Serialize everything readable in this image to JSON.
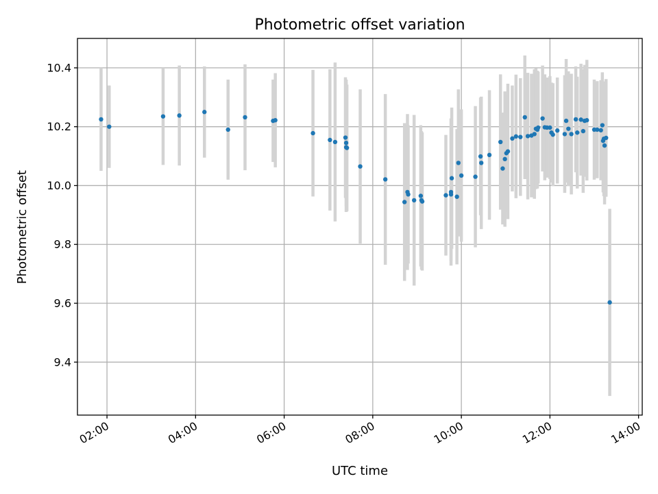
{
  "chart_data": {
    "type": "scatter",
    "title": "Photometric offset variation",
    "xlabel": "UTC time",
    "ylabel": "Photometric offset",
    "xlim": [
      "01:20",
      "14:05"
    ],
    "ylim": [
      9.22,
      10.5
    ],
    "x_ticks": [
      "02:00",
      "04:00",
      "06:00",
      "08:00",
      "10:00",
      "12:00",
      "14:00"
    ],
    "y_ticks": [
      9.4,
      9.6,
      9.8,
      10.0,
      10.2,
      10.4
    ],
    "y_tick_labels": [
      "9.4",
      "9.6",
      "9.8",
      "10.0",
      "10.2",
      "10.4"
    ],
    "grid": true,
    "colors": {
      "points": "#1f77b4",
      "errorbars": "#d3d3d3"
    },
    "series": [
      {
        "x": [
          "01:52",
          "02:03",
          "03:16",
          "03:38",
          "04:12",
          "04:44",
          "05:07",
          "05:45",
          "05:48",
          "06:39",
          "07:02",
          "07:09",
          "07:23",
          "07:24",
          "07:24",
          "07:25",
          "07:43",
          "08:17",
          "08:43",
          "08:47",
          "08:48",
          "08:56",
          "09:05",
          "09:06",
          "09:07",
          "09:39",
          "09:46",
          "09:46",
          "09:47",
          "09:54",
          "09:56",
          "10:00",
          "10:19",
          "10:26",
          "10:27",
          "10:38",
          "10:53",
          "10:56",
          "10:59",
          "11:01",
          "11:03",
          "11:09",
          "11:14",
          "11:20",
          "11:26",
          "11:30",
          "11:35",
          "11:39",
          "11:41",
          "11:43",
          "11:44",
          "11:50",
          "11:53",
          "11:56",
          "12:00",
          "12:02",
          "12:04",
          "12:10",
          "12:20",
          "12:22",
          "12:25",
          "12:29",
          "12:35",
          "12:37",
          "12:42",
          "12:45",
          "12:47",
          "12:50",
          "13:00",
          "13:04",
          "13:09",
          "13:11",
          "13:12",
          "13:13",
          "13:14",
          "13:16",
          "13:21"
        ],
        "y": [
          10.225,
          10.2,
          10.235,
          10.238,
          10.25,
          10.19,
          10.232,
          10.22,
          10.222,
          10.178,
          10.155,
          10.148,
          10.163,
          10.145,
          10.13,
          10.128,
          10.065,
          10.021,
          9.944,
          9.978,
          9.97,
          9.95,
          9.965,
          9.95,
          9.946,
          9.967,
          9.978,
          9.97,
          10.025,
          9.962,
          10.077,
          10.034,
          10.03,
          10.099,
          10.077,
          10.104,
          10.148,
          10.058,
          10.09,
          10.11,
          10.116,
          10.16,
          10.167,
          10.165,
          10.232,
          10.168,
          10.17,
          10.175,
          10.193,
          10.19,
          10.197,
          10.228,
          10.198,
          10.197,
          10.197,
          10.18,
          10.173,
          10.187,
          10.175,
          10.22,
          10.193,
          10.175,
          10.225,
          10.18,
          10.224,
          10.185,
          10.22,
          10.222,
          10.19,
          10.19,
          10.188,
          10.205,
          10.152,
          10.159,
          10.136,
          10.162,
          9.603
        ],
        "yerr": [
          0.175,
          0.14,
          0.165,
          0.17,
          0.155,
          0.17,
          0.18,
          0.14,
          0.16,
          0.215,
          0.24,
          0.27,
          0.205,
          0.215,
          0.22,
          0.215,
          0.262,
          0.29,
          0.268,
          0.265,
          0.235,
          0.29,
          0.24,
          0.235,
          0.235,
          0.205,
          0.25,
          0.225,
          0.24,
          0.23,
          0.25,
          0.225,
          0.24,
          0.2,
          0.225,
          0.22,
          0.23,
          0.19,
          0.23,
          0.2,
          0.23,
          0.18,
          0.21,
          0.2,
          0.21,
          0.215,
          0.21,
          0.22,
          0.205,
          0.2,
          0.19,
          0.18,
          0.18,
          0.17,
          0.175,
          0.17,
          0.175,
          0.18,
          0.2,
          0.21,
          0.195,
          0.205,
          0.18,
          0.19,
          0.19,
          0.21,
          0.19,
          0.205,
          0.17,
          0.165,
          0.17,
          0.18,
          0.175,
          0.195,
          0.2,
          0.2,
          0.318
        ]
      }
    ]
  }
}
